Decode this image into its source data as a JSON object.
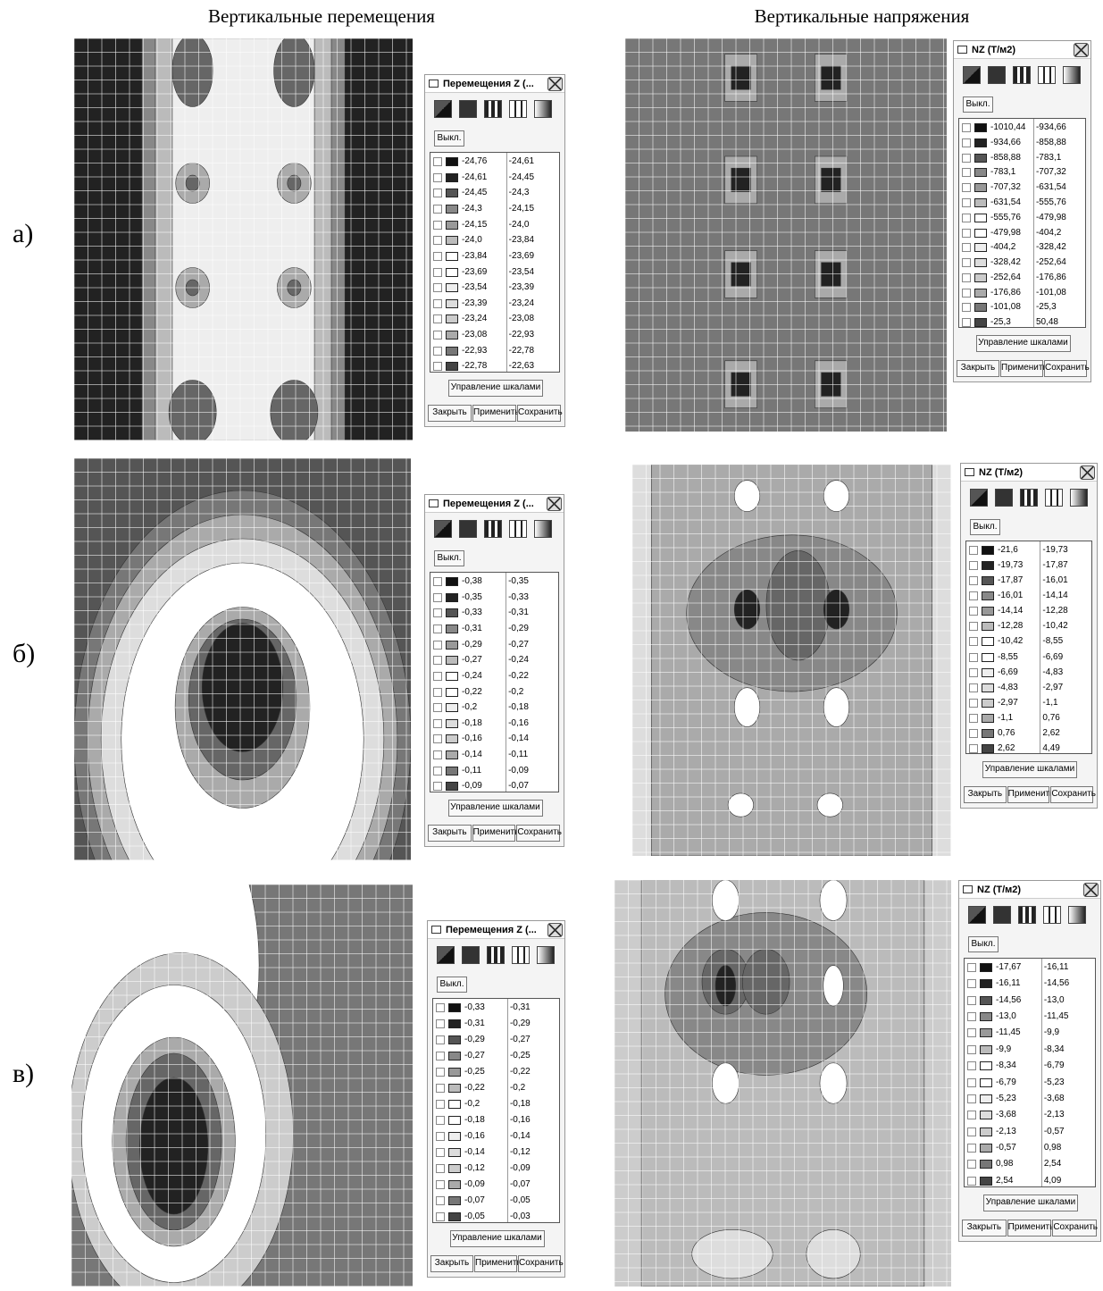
{
  "column_titles": [
    "Вертикальные перемещения",
    "Вертикальные напряжения"
  ],
  "rows": [
    {
      "label": "а)",
      "panels": [
        {
          "title": "Перемещения Z (...",
          "off_button": "Выкл.",
          "scale_button": "Управление шкалами",
          "buttons": [
            "Закрыть",
            "Применить",
            "Сохранить"
          ],
          "legend": [
            [
              "-24,76",
              "-24,61"
            ],
            [
              "-24,61",
              "-24,45"
            ],
            [
              "-24,45",
              "-24,3"
            ],
            [
              "-24,3",
              "-24,15"
            ],
            [
              "-24,15",
              "-24,0"
            ],
            [
              "-24,0",
              "-23,84"
            ],
            [
              "-23,84",
              "-23,69"
            ],
            [
              "-23,69",
              "-23,54"
            ],
            [
              "-23,54",
              "-23,39"
            ],
            [
              "-23,39",
              "-23,24"
            ],
            [
              "-23,24",
              "-23,08"
            ],
            [
              "-23,08",
              "-22,93"
            ],
            [
              "-22,93",
              "-22,78"
            ],
            [
              "-22,78",
              "-22,63"
            ]
          ]
        },
        {
          "title": "NZ (Т/м2)",
          "off_button": "Выкл.",
          "scale_button": "Управление шкалами",
          "buttons": [
            "Закрыть",
            "Применить",
            "Сохранить"
          ],
          "legend": [
            [
              "-1010,44",
              "-934,66"
            ],
            [
              "-934,66",
              "-858,88"
            ],
            [
              "-858,88",
              "-783,1"
            ],
            [
              "-783,1",
              "-707,32"
            ],
            [
              "-707,32",
              "-631,54"
            ],
            [
              "-631,54",
              "-555,76"
            ],
            [
              "-555,76",
              "-479,98"
            ],
            [
              "-479,98",
              "-404,2"
            ],
            [
              "-404,2",
              "-328,42"
            ],
            [
              "-328,42",
              "-252,64"
            ],
            [
              "-252,64",
              "-176,86"
            ],
            [
              "-176,86",
              "-101,08"
            ],
            [
              "-101,08",
              "-25,3"
            ],
            [
              "-25,3",
              "50,48"
            ]
          ]
        }
      ]
    },
    {
      "label": "б)",
      "panels": [
        {
          "title": "Перемещения Z (...",
          "off_button": "Выкл.",
          "scale_button": "Управление шкалами",
          "buttons": [
            "Закрыть",
            "Применить",
            "Сохранить"
          ],
          "legend": [
            [
              "-0,38",
              "-0,35"
            ],
            [
              "-0,35",
              "-0,33"
            ],
            [
              "-0,33",
              "-0,31"
            ],
            [
              "-0,31",
              "-0,29"
            ],
            [
              "-0,29",
              "-0,27"
            ],
            [
              "-0,27",
              "-0,24"
            ],
            [
              "-0,24",
              "-0,22"
            ],
            [
              "-0,22",
              "-0,2"
            ],
            [
              "-0,2",
              "-0,18"
            ],
            [
              "-0,18",
              "-0,16"
            ],
            [
              "-0,16",
              "-0,14"
            ],
            [
              "-0,14",
              "-0,11"
            ],
            [
              "-0,11",
              "-0,09"
            ],
            [
              "-0,09",
              "-0,07"
            ]
          ]
        },
        {
          "title": "NZ (Т/м2)",
          "off_button": "Выкл.",
          "scale_button": "Управление шкалами",
          "buttons": [
            "Закрыть",
            "Применить",
            "Сохранить"
          ],
          "legend": [
            [
              "-21,6",
              "-19,73"
            ],
            [
              "-19,73",
              "-17,87"
            ],
            [
              "-17,87",
              "-16,01"
            ],
            [
              "-16,01",
              "-14,14"
            ],
            [
              "-14,14",
              "-12,28"
            ],
            [
              "-12,28",
              "-10,42"
            ],
            [
              "-10,42",
              "-8,55"
            ],
            [
              "-8,55",
              "-6,69"
            ],
            [
              "-6,69",
              "-4,83"
            ],
            [
              "-4,83",
              "-2,97"
            ],
            [
              "-2,97",
              "-1,1"
            ],
            [
              "-1,1",
              "0,76"
            ],
            [
              "0,76",
              "2,62"
            ],
            [
              "2,62",
              "4,49"
            ]
          ]
        }
      ]
    },
    {
      "label": "в)",
      "panels": [
        {
          "title": "Перемещения Z (...",
          "off_button": "Выкл.",
          "scale_button": "Управление шкалами",
          "buttons": [
            "Закрыть",
            "Применить",
            "Сохранить"
          ],
          "legend": [
            [
              "-0,33",
              "-0,31"
            ],
            [
              "-0,31",
              "-0,29"
            ],
            [
              "-0,29",
              "-0,27"
            ],
            [
              "-0,27",
              "-0,25"
            ],
            [
              "-0,25",
              "-0,22"
            ],
            [
              "-0,22",
              "-0,2"
            ],
            [
              "-0,2",
              "-0,18"
            ],
            [
              "-0,18",
              "-0,16"
            ],
            [
              "-0,16",
              "-0,14"
            ],
            [
              "-0,14",
              "-0,12"
            ],
            [
              "-0,12",
              "-0,09"
            ],
            [
              "-0,09",
              "-0,07"
            ],
            [
              "-0,07",
              "-0,05"
            ],
            [
              "-0,05",
              "-0,03"
            ]
          ]
        },
        {
          "title": "NZ (Т/м2)",
          "off_button": "Выкл.",
          "scale_button": "Управление шкалами",
          "buttons": [
            "Закрыть",
            "Применить",
            "Сохранить"
          ],
          "legend": [
            [
              "-17,67",
              "-16,11"
            ],
            [
              "-16,11",
              "-14,56"
            ],
            [
              "-14,56",
              "-13,0"
            ],
            [
              "-13,0",
              "-11,45"
            ],
            [
              "-11,45",
              "-9,9"
            ],
            [
              "-9,9",
              "-8,34"
            ],
            [
              "-8,34",
              "-6,79"
            ],
            [
              "-6,79",
              "-5,23"
            ],
            [
              "-5,23",
              "-3,68"
            ],
            [
              "-3,68",
              "-2,13"
            ],
            [
              "-2,13",
              "-0,57"
            ],
            [
              "-0,57",
              "0,98"
            ],
            [
              "0,98",
              "2,54"
            ],
            [
              "2,54",
              "4,09"
            ]
          ]
        }
      ]
    }
  ]
}
